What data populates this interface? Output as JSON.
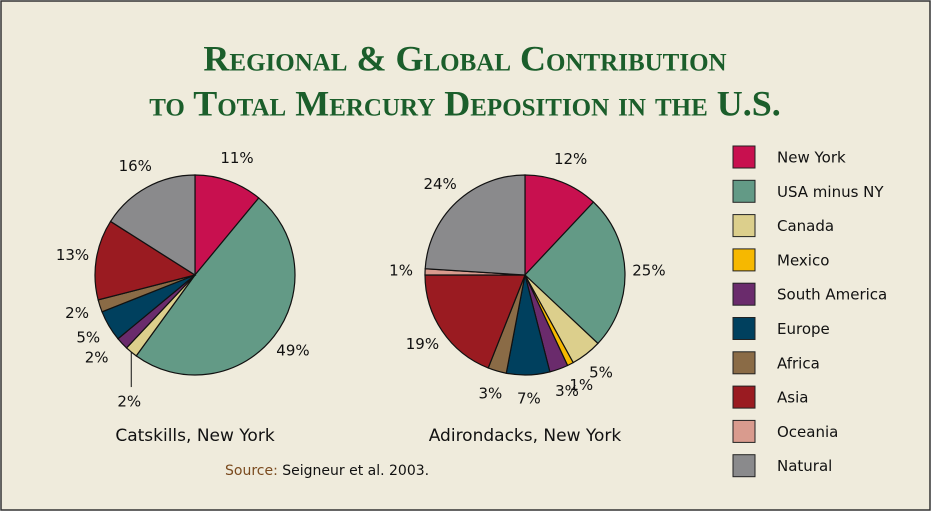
{
  "title_lines": [
    "Regional & Global Contribution",
    "to Total Mercury Deposition in the U.S."
  ],
  "legend": {
    "labels": [
      "New York",
      "USA minus NY",
      "Canada",
      "Mexico",
      "South America",
      "Europe",
      "Africa",
      "Asia",
      "Oceania",
      "Natural"
    ],
    "colors": [
      "#c8104f",
      "#639a86",
      "#dccf8c",
      "#f6b800",
      "#6a2b6c",
      "#00405e",
      "#8a6b46",
      "#9a1b21",
      "#d99b8e",
      "#8a8a8c"
    ]
  },
  "source": {
    "label": "Source:",
    "text": "Seigneur et al. 2003."
  },
  "chart_data": [
    {
      "type": "pie",
      "title": "Catskills, New York",
      "values": [
        11,
        49,
        2,
        0,
        2,
        5,
        2,
        13,
        0,
        16
      ],
      "value_labels": [
        "11%",
        "49%",
        "2%",
        null,
        "2%",
        "5%",
        "2%",
        "13%",
        null,
        "16%"
      ]
    },
    {
      "type": "pie",
      "title": "Adirondacks, New York",
      "values": [
        12,
        25,
        5,
        1,
        3,
        7,
        3,
        19,
        1,
        24
      ],
      "value_labels": [
        "12%",
        "25%",
        "5%",
        "1%",
        "3%",
        "7%",
        "3%",
        "19%",
        "1%",
        "24%"
      ]
    }
  ]
}
